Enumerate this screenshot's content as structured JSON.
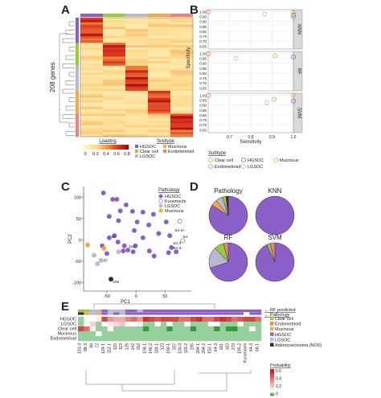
{
  "panels": {
    "a": "A",
    "b": "B",
    "c": "C",
    "d": "D",
    "e": "E"
  },
  "colors": {
    "hgsoc": "#8B5FC8",
    "clear_cell": "#9ACD32",
    "lgsoc": "#B8B8D0",
    "mucinous": "#F5A742",
    "endometrioid": "#F08080",
    "kuramochi": "#FFFFFF",
    "adenocarcinoma": "#303030",
    "heat_low": "#FFF4C0",
    "heat_high": "#B2001A"
  },
  "chart_data": [
    {
      "type": "heatmap",
      "panel": "A",
      "ylabel": "208 genes",
      "column_labels": [
        "Loading",
        "Subtype"
      ],
      "colorbar": {
        "ticks": [
          "0",
          "0.2",
          "0.4",
          "0.6",
          "0.8"
        ],
        "range": [
          0,
          0.9
        ]
      },
      "legend": [
        {
          "label": "HGSOC",
          "color": "#8B5FC8"
        },
        {
          "label": "Clear cell",
          "color": "#9ACD32"
        },
        {
          "label": "LGSOC",
          "color": "#B8B8D0"
        },
        {
          "label": "Mucinous",
          "color": "#F5A742"
        },
        {
          "label": "Endometrioid",
          "color": "#F08080"
        }
      ],
      "columns": 5
    },
    {
      "type": "scatter",
      "panel": "B",
      "xlabel": "Sensitivity",
      "ylabel": "Specificity",
      "xlim": [
        0.6,
        1.0
      ],
      "ylim": [
        0.62,
        1.02
      ],
      "xticks": [
        "0.7",
        "0.8",
        "0.9",
        "1.0"
      ],
      "yticks": [
        "0.65",
        "0.70",
        "0.75",
        "0.80",
        "0.85",
        "0.90",
        "0.95",
        "1.00"
      ],
      "facets": [
        "KNN",
        "RF",
        "SVM"
      ],
      "legend_title": "Subtype",
      "points": {
        "KNN": [
          {
            "x": 0.6,
            "y": 0.995,
            "s": "endometrioid"
          },
          {
            "x": 1.0,
            "y": 0.995,
            "s": "mucinous"
          },
          {
            "x": 0.865,
            "y": 0.975,
            "s": "lgsoc"
          },
          {
            "x": 1.0,
            "y": 0.94,
            "s": "clear_cell"
          },
          {
            "x": 1.0,
            "y": 0.965,
            "s": "hgsoc"
          }
        ],
        "RF": [
          {
            "x": 0.6,
            "y": 0.995,
            "s": "endometrioid"
          },
          {
            "x": 0.6,
            "y": 0.998,
            "s": "mucinous"
          },
          {
            "x": 0.915,
            "y": 0.975,
            "s": "clear_cell"
          },
          {
            "x": 0.73,
            "y": 0.95,
            "s": "lgsoc"
          },
          {
            "x": 1.0,
            "y": 0.965,
            "s": "hgsoc"
          }
        ],
        "SVM": [
          {
            "x": 0.6,
            "y": 0.998,
            "s": "endometrioid"
          },
          {
            "x": 1.0,
            "y": 0.998,
            "s": "mucinous"
          },
          {
            "x": 0.91,
            "y": 0.96,
            "s": "clear_cell"
          },
          {
            "x": 0.875,
            "y": 0.925,
            "s": "lgsoc"
          },
          {
            "x": 1.0,
            "y": 0.94,
            "s": "hgsoc"
          }
        ]
      },
      "legend": [
        {
          "label": "Clear cell",
          "s": "clear_cell"
        },
        {
          "label": "HGSOC",
          "s": "hgsoc"
        },
        {
          "label": "Mucinous",
          "s": "mucinous"
        },
        {
          "label": "Endometrioid",
          "s": "endometrioid"
        },
        {
          "label": "LGSOC",
          "s": "lgsoc"
        }
      ]
    },
    {
      "type": "scatter",
      "panel": "C",
      "xlabel": "PC1",
      "ylabel": "PC2",
      "xlim": [
        -90,
        95
      ],
      "ylim": [
        -120,
        125
      ],
      "xticks": [
        -50,
        0,
        50
      ],
      "yticks": [
        -100,
        -50,
        0,
        50,
        100
      ],
      "legend_title": "Pathology",
      "legend": [
        {
          "label": "HGSOC",
          "s": "hgsoc"
        },
        {
          "label": "Kuramochi",
          "s": "kuramochi"
        },
        {
          "label": "LGSOC",
          "s": "lgsoc"
        },
        {
          "label": "Mucinous",
          "s": "mucinous"
        }
      ],
      "points": [
        {
          "x": -56,
          "y": 110,
          "s": "hgsoc"
        },
        {
          "x": -40,
          "y": 95,
          "s": "hgsoc"
        },
        {
          "x": -33,
          "y": 95,
          "s": "hgsoc"
        },
        {
          "x": -17,
          "y": 82,
          "s": "hgsoc"
        },
        {
          "x": -27,
          "y": 68,
          "s": "hgsoc"
        },
        {
          "x": -6,
          "y": 67,
          "s": "hgsoc"
        },
        {
          "x": 12,
          "y": 65,
          "s": "hgsoc"
        },
        {
          "x": 30,
          "y": 60,
          "s": "hgsoc"
        },
        {
          "x": -46,
          "y": 55,
          "s": "hgsoc"
        },
        {
          "x": -30,
          "y": 45,
          "s": "hgsoc"
        },
        {
          "x": 2,
          "y": 42,
          "s": "hgsoc"
        },
        {
          "x": 22,
          "y": 35,
          "s": "hgsoc"
        },
        {
          "x": 52,
          "y": 42,
          "s": "hgsoc"
        },
        {
          "x": -3,
          "y": 22,
          "s": "hgsoc"
        },
        {
          "x": -37,
          "y": 10,
          "s": "hgsoc"
        },
        {
          "x": 12,
          "y": 5,
          "s": "hgsoc"
        },
        {
          "x": 39,
          "y": 15,
          "s": "hgsoc"
        },
        {
          "x": 58,
          "y": 10,
          "s": "hgsoc"
        },
        {
          "x": -46,
          "y": 5,
          "s": "hgsoc"
        },
        {
          "x": -31,
          "y": -5,
          "s": "hgsoc"
        },
        {
          "x": -20,
          "y": -14,
          "s": "hgsoc"
        },
        {
          "x": -1,
          "y": -14,
          "s": "hgsoc"
        },
        {
          "x": -22,
          "y": -26,
          "s": "hgsoc"
        },
        {
          "x": -14,
          "y": -24,
          "s": "hgsoc"
        },
        {
          "x": -5,
          "y": -28,
          "s": "hgsoc"
        },
        {
          "x": 23,
          "y": -26,
          "s": "hgsoc"
        },
        {
          "x": 31,
          "y": -38,
          "s": "hgsoc"
        },
        {
          "x": 61,
          "y": -18,
          "s": "hgsoc"
        },
        {
          "x": 56,
          "y": -30,
          "s": "hgsoc"
        },
        {
          "x": 69,
          "y": -28,
          "s": "hgsoc"
        },
        {
          "x": -58,
          "y": -14,
          "s": "hgsoc"
        },
        {
          "x": -50,
          "y": -32,
          "s": "hgsoc"
        },
        {
          "x": 75,
          "y": 44,
          "s": "kuramochi"
        },
        {
          "x": 80,
          "y": -2,
          "s": "kuramochi"
        },
        {
          "x": -60,
          "y": -48,
          "s": "lgsoc"
        },
        {
          "x": -72,
          "y": -36,
          "s": "lgsoc"
        },
        {
          "x": -30,
          "y": -28,
          "s": "lgsoc"
        },
        {
          "x": -66,
          "y": -56,
          "s": "lgsoc"
        },
        {
          "x": -83,
          "y": -12,
          "s": "mucinous"
        },
        {
          "x": -55,
          "y": -20,
          "s": "mucinous"
        },
        {
          "x": -43,
          "y": -92,
          "s": "adenocarcinoma"
        }
      ],
      "annotations": [
        {
          "text": "80",
          "x": -42,
          "y": 4
        },
        {
          "text": "64-3+",
          "x": 67,
          "y": 19
        },
        {
          "text": "64",
          "x": 81,
          "y": 4
        },
        {
          "text": "64-3",
          "x": 64,
          "y": -11
        },
        {
          "text": "64-3-",
          "x": 64,
          "y": -22
        },
        {
          "text": "152",
          "x": -13,
          "y": -18
        },
        {
          "text": "87",
          "x": -56,
          "y": -51
        },
        {
          "text": "195",
          "x": -40,
          "y": -101
        }
      ]
    },
    {
      "type": "pie",
      "panel": "D",
      "charts": [
        {
          "title": "Pathology",
          "slices": [
            {
              "s": "hgsoc",
              "value": 0.84
            },
            {
              "s": "mucinous",
              "value": 0.05
            },
            {
              "s": "lgsoc",
              "value": 0.06
            },
            {
              "s": "clear_cell",
              "value": 0.03
            },
            {
              "s": "adenocarcinoma",
              "value": 0.02
            }
          ]
        },
        {
          "title": "KNN",
          "slices": [
            {
              "s": "hgsoc",
              "value": 1.0
            }
          ]
        },
        {
          "title": "RF",
          "slices": [
            {
              "s": "hgsoc",
              "value": 0.7
            },
            {
              "s": "lgsoc",
              "value": 0.18
            },
            {
              "s": "clear_cell",
              "value": 0.08
            },
            {
              "s": "endometrioid",
              "value": 0.04
            }
          ]
        },
        {
          "title": "SVM",
          "slices": [
            {
              "s": "hgsoc",
              "value": 0.93
            },
            {
              "s": "clear_cell",
              "value": 0.03
            },
            {
              "s": "endometrioid",
              "value": 0.04
            }
          ]
        }
      ]
    },
    {
      "type": "heatmap",
      "panel": "E",
      "row_labels": [
        "HGSOC",
        "LGSOC",
        "Clear cell",
        "Mucinous",
        "Endometrioid"
      ],
      "right_labels": [
        "RF predicted",
        "Pathology"
      ],
      "column_labels": [
        "191-3",
        "88-3",
        "88",
        "72",
        "124-1",
        "112-1",
        "115",
        "113",
        "125",
        "142",
        "152",
        "108-1",
        "146-2",
        "118-1",
        "123",
        "150-1",
        "157",
        "100-3",
        "119-2",
        "195",
        "204-1",
        "204-2",
        "152-1",
        "64-3",
        "161",
        "163",
        "179",
        "195-2",
        "Kuramochi",
        "64-3",
        "68-1"
      ],
      "legend": [
        {
          "label": "Clear cell",
          "s": "clear_cell"
        },
        {
          "label": "Endometrioid",
          "s": "endometrioid"
        },
        {
          "label": "Mucinous",
          "s": "mucinous"
        },
        {
          "label": "HGSOC",
          "s": "hgsoc"
        },
        {
          "label": "LGSOC",
          "s": "lgsoc"
        },
        {
          "label": "Adenocarcinoma (NOS)",
          "s": "adenocarcinoma"
        }
      ],
      "probability_legend": {
        "title": "Probability",
        "ticks": [
          "0.6",
          "0.4",
          "0.2",
          "0"
        ]
      },
      "values": {
        "HGSOC": [
          0.05,
          0.1,
          0.1,
          0.15,
          0.55,
          0.35,
          0.3,
          0.3,
          0.4,
          0.45,
          0.35,
          0.6,
          0.55,
          0.5,
          0.55,
          0.55,
          0.55,
          0.45,
          0.45,
          0.55,
          0.6,
          0.45,
          0.45,
          0.55,
          0.6,
          0.55,
          0.45,
          0.5,
          0.55,
          0.55,
          0.45
        ],
        "LGSOC": [
          0.05,
          0.1,
          0.2,
          0.05,
          0.1,
          0.15,
          0.2,
          0.25,
          0.1,
          0.1,
          0.15,
          0.05,
          0.05,
          0.1,
          0.05,
          0.1,
          0.05,
          0.05,
          0.1,
          0.05,
          0.05,
          0.05,
          0.1,
          0.1,
          0.05,
          0.05,
          0.05,
          0.1,
          0.05,
          0.05,
          0.05
        ],
        "Clear cell": [
          0.55,
          0.45,
          0.15,
          0.05,
          0.05,
          0.1,
          0.05,
          0.05,
          0.05,
          0.05,
          0.05,
          0.0,
          0.05,
          0.05,
          0.05,
          0.0,
          0.05,
          0.05,
          0.05,
          0.0,
          0.05,
          0.05,
          0.05,
          0.0,
          0.05,
          0.0,
          0.0,
          0.05,
          0.05,
          0.1,
          0.05
        ],
        "Mucinous": [
          0.05,
          0.05,
          0.05,
          0.1,
          0.05,
          0.05,
          0.05,
          0.05,
          0.05,
          0.05,
          0.05,
          0.05,
          0.05,
          0.05,
          0.05,
          0.05,
          0.05,
          0.05,
          0.05,
          0.05,
          0.05,
          0.05,
          0.05,
          0.05,
          0.05,
          0.05,
          0.05,
          0.05,
          0.05,
          0.05,
          0.05
        ],
        "Endometrioid": [
          0.05,
          0.05,
          0.05,
          0.05,
          0.05,
          0.05,
          0.05,
          0.05,
          0.05,
          0.05,
          0.05,
          0.05,
          0.05,
          0.05,
          0.05,
          0.05,
          0.05,
          0.05,
          0.05,
          0.05,
          0.05,
          0.05,
          0.05,
          0.05,
          0.05,
          0.05,
          0.05,
          0.05,
          0.05,
          0.05,
          0.05
        ]
      }
    }
  ]
}
